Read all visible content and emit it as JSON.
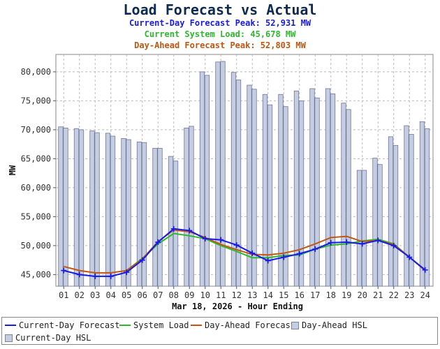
{
  "header": {
    "title": "Load Forecast vs Actual",
    "cd_peak": "Current-Day Forecast Peak:  52,931 MW",
    "system_load": "Current System Load:  45,678 MW",
    "da_peak": "Day-Ahead Forecast Peak:  52,803 MW"
  },
  "legend": {
    "cd_forecast": "Current-Day Forecast",
    "system_load": "System Load",
    "da_forecast": "Day-Ahead Forecast",
    "da_hsl": "Day-Ahead HSL",
    "cd_hsl": "Current-Day HSL"
  },
  "chart_data": {
    "type": "bar",
    "xlabel": "Mar 18, 2026 - Hour Ending",
    "ylabel": "MW",
    "ylim": [
      43000,
      83000
    ],
    "y_ticks": [
      45000,
      50000,
      55000,
      60000,
      65000,
      70000,
      75000,
      80000
    ],
    "y_tick_labels": [
      "45,000",
      "50,000",
      "55,000",
      "60,000",
      "65,000",
      "70,000",
      "75,000",
      "80,000"
    ],
    "grid": true,
    "legend_position": "bottom",
    "categories": [
      "01",
      "02",
      "03",
      "04",
      "05",
      "06",
      "07",
      "08",
      "09",
      "10",
      "11",
      "12",
      "13",
      "14",
      "15",
      "16",
      "17",
      "18",
      "19",
      "20",
      "21",
      "22",
      "23",
      "24"
    ],
    "series": [
      {
        "name": "Day-Ahead HSL",
        "kind": "bar",
        "color": "#c5cde3",
        "values": [
          70500,
          70200,
          69800,
          69400,
          68500,
          67900,
          66800,
          65400,
          70300,
          80000,
          81700,
          79900,
          77700,
          76100,
          76100,
          76700,
          77100,
          77100,
          74600,
          63000,
          65100,
          68800,
          70700,
          71400
        ]
      },
      {
        "name": "Current-Day HSL",
        "kind": "bar",
        "color": "#c5cde3",
        "values": [
          70300,
          70000,
          69500,
          68900,
          68300,
          67800,
          66800,
          64600,
          70600,
          79400,
          81800,
          78600,
          77000,
          74300,
          74000,
          75000,
          75500,
          76200,
          73500,
          63000,
          64000,
          67300,
          69200,
          70200
        ]
      },
      {
        "name": "Current-Day Forecast",
        "kind": "line",
        "color": "#1a1ae6",
        "values": [
          45700,
          45000,
          44700,
          44700,
          45400,
          47500,
          50600,
          52900,
          52600,
          51200,
          51000,
          50100,
          48700,
          47400,
          48000,
          48600,
          49400,
          50500,
          50600,
          50300,
          50900,
          50000,
          48000,
          45800
        ]
      },
      {
        "name": "System Load",
        "kind": "line",
        "color": "#2db82d",
        "values": [
          null,
          null,
          null,
          null,
          45700,
          47800,
          50300,
          52100,
          51700,
          51200,
          50000,
          49000,
          47900,
          47900,
          48300,
          48400,
          49400,
          50100,
          50300,
          50800,
          51100,
          50300,
          48000,
          45700
        ]
      },
      {
        "name": "Day-Ahead Forecast",
        "kind": "line",
        "color": "#c0560f",
        "values": [
          46400,
          45700,
          45300,
          45300,
          45700,
          47700,
          50700,
          52700,
          52400,
          51400,
          50200,
          49300,
          48500,
          48400,
          48700,
          49300,
          50300,
          51400,
          51600,
          50700,
          50900,
          50200,
          48000,
          45700
        ]
      }
    ]
  }
}
